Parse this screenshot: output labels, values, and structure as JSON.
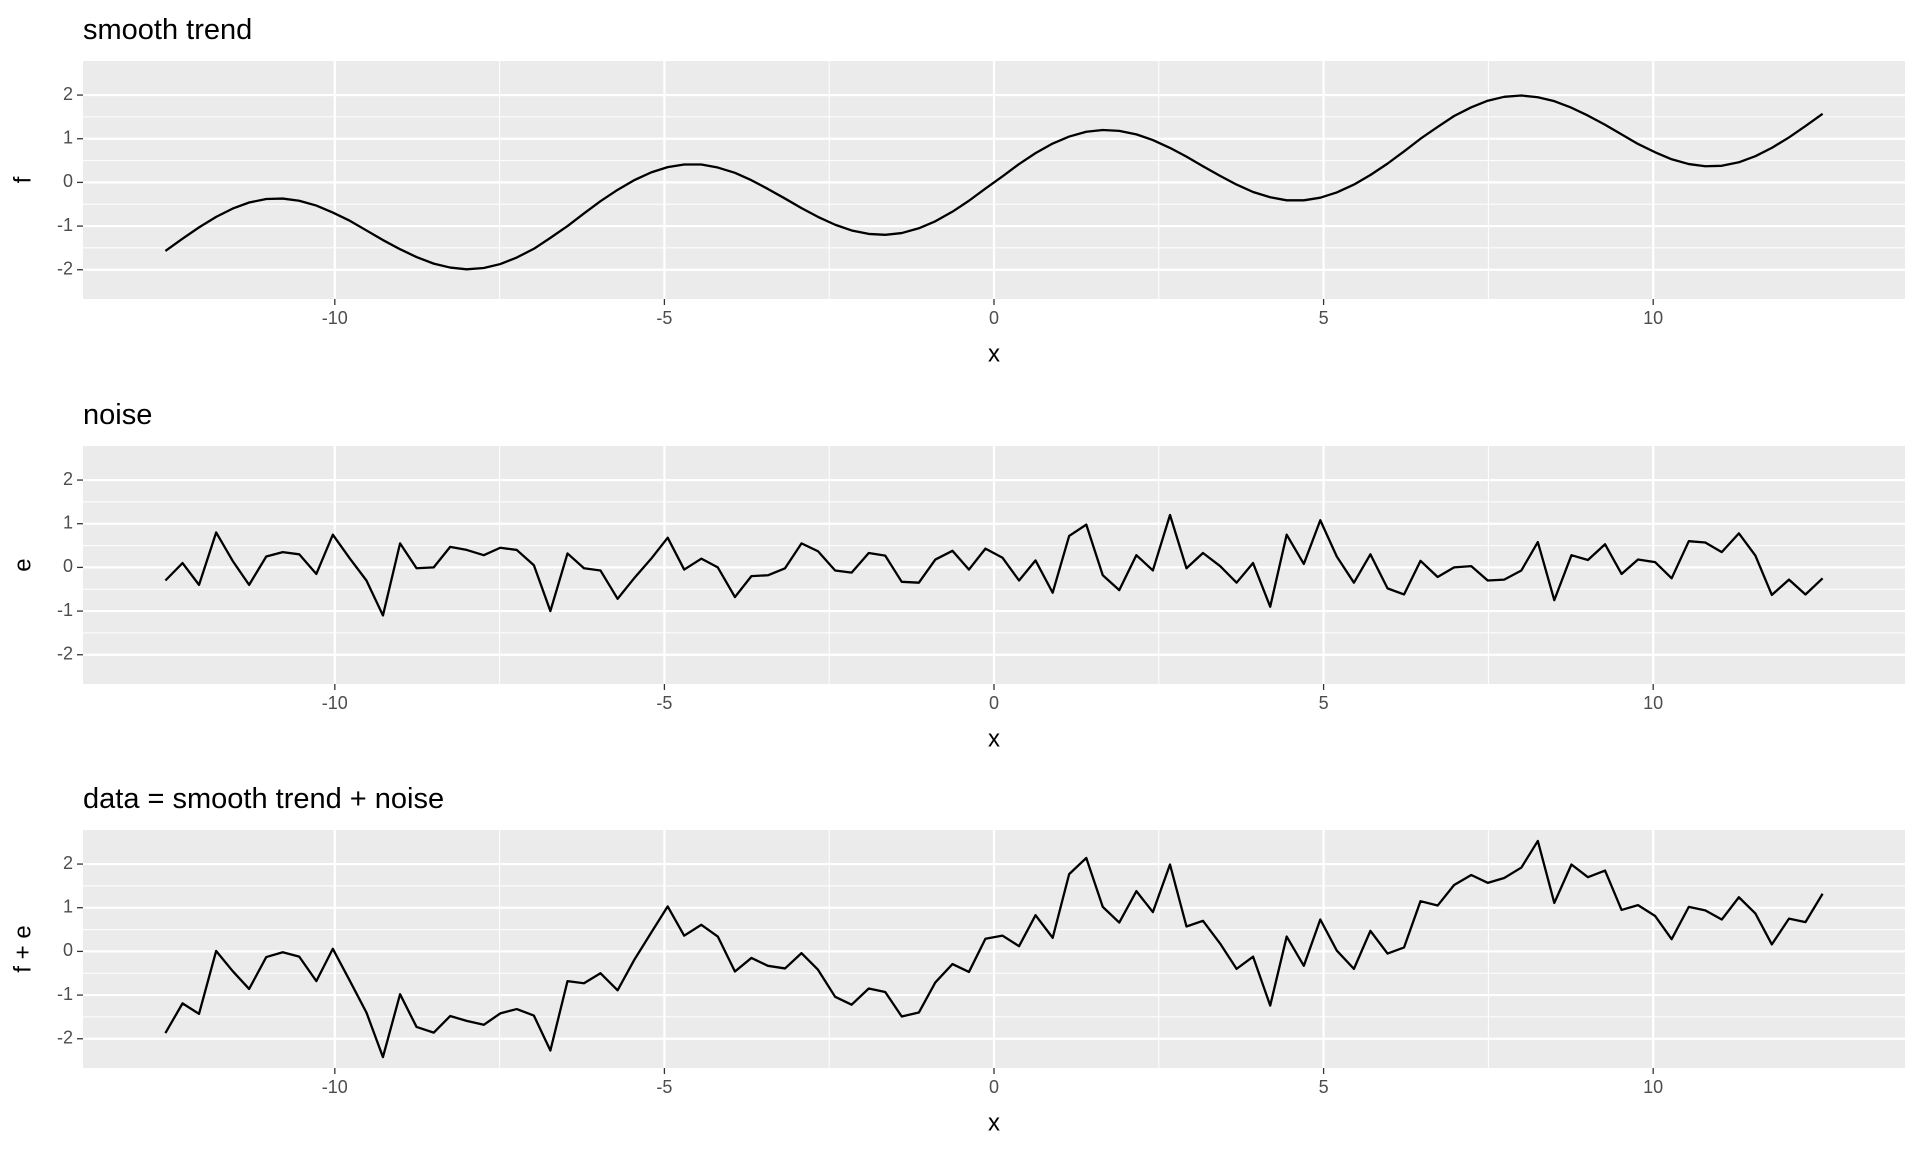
{
  "chart_data": [
    {
      "type": "line",
      "title": "smooth trend",
      "xlabel": "x",
      "ylabel": "f",
      "color": "#000000",
      "grid": true,
      "minor_grid": true,
      "xlim": [
        -13.82,
        13.82
      ],
      "ylim": [
        -2.67,
        2.78
      ],
      "xticks": [
        -10,
        -5,
        0,
        5,
        10
      ],
      "yticks": [
        -2,
        -1,
        0,
        1,
        2
      ],
      "x": [
        -12.57,
        -12.31,
        -12.06,
        -11.8,
        -11.55,
        -11.3,
        -11.04,
        -10.79,
        -10.54,
        -10.28,
        -10.03,
        -9.77,
        -9.52,
        -9.27,
        -9.01,
        -8.76,
        -8.5,
        -8.25,
        -8.0,
        -7.74,
        -7.49,
        -7.24,
        -6.98,
        -6.73,
        -6.47,
        -6.22,
        -5.97,
        -5.71,
        -5.46,
        -5.2,
        -4.95,
        -4.7,
        -4.44,
        -4.19,
        -3.93,
        -3.68,
        -3.43,
        -3.17,
        -2.92,
        -2.67,
        -2.41,
        -2.16,
        -1.9,
        -1.65,
        -1.4,
        -1.14,
        -0.89,
        -0.63,
        -0.38,
        -0.13,
        0.13,
        0.38,
        0.63,
        0.89,
        1.14,
        1.4,
        1.65,
        1.9,
        2.16,
        2.41,
        2.67,
        2.92,
        3.17,
        3.43,
        3.68,
        3.93,
        4.19,
        4.44,
        4.7,
        4.95,
        5.2,
        5.46,
        5.71,
        5.97,
        6.22,
        6.47,
        6.73,
        6.98,
        7.24,
        7.49,
        7.74,
        8.0,
        8.25,
        8.5,
        8.76,
        9.01,
        9.27,
        9.52,
        9.77,
        10.03,
        10.28,
        10.54,
        10.79,
        11.04,
        11.3,
        11.55,
        11.8,
        12.06,
        12.31,
        12.57
      ],
      "values": [
        -1.57,
        -1.29,
        -1.03,
        -0.79,
        -0.6,
        -0.46,
        -0.38,
        -0.37,
        -0.42,
        -0.53,
        -0.69,
        -0.88,
        -1.1,
        -1.32,
        -1.53,
        -1.71,
        -1.86,
        -1.95,
        -1.99,
        -1.96,
        -1.87,
        -1.72,
        -1.52,
        -1.27,
        -1.0,
        -0.71,
        -0.43,
        -0.17,
        0.05,
        0.23,
        0.35,
        0.41,
        0.41,
        0.34,
        0.22,
        0.05,
        -0.15,
        -0.37,
        -0.59,
        -0.79,
        -0.97,
        -1.1,
        -1.18,
        -1.2,
        -1.16,
        -1.05,
        -0.89,
        -0.67,
        -0.42,
        -0.14,
        0.14,
        0.42,
        0.67,
        0.89,
        1.05,
        1.16,
        1.2,
        1.18,
        1.1,
        0.97,
        0.79,
        0.59,
        0.37,
        0.15,
        -0.05,
        -0.22,
        -0.34,
        -0.41,
        -0.41,
        -0.35,
        -0.23,
        -0.05,
        0.17,
        0.43,
        0.71,
        1.0,
        1.27,
        1.52,
        1.72,
        1.87,
        1.96,
        1.99,
        1.95,
        1.86,
        1.71,
        1.53,
        1.32,
        1.1,
        0.88,
        0.69,
        0.53,
        0.42,
        0.37,
        0.38,
        0.46,
        0.6,
        0.79,
        1.03,
        1.29,
        1.57
      ]
    },
    {
      "type": "line",
      "title": "noise",
      "xlabel": "x",
      "ylabel": "e",
      "color": "#000000",
      "grid": true,
      "minor_grid": true,
      "xlim": [
        -13.82,
        13.82
      ],
      "ylim": [
        -2.67,
        2.78
      ],
      "xticks": [
        -10,
        -5,
        0,
        5,
        10
      ],
      "yticks": [
        -2,
        -1,
        0,
        1,
        2
      ],
      "x": [
        -12.57,
        -12.31,
        -12.06,
        -11.8,
        -11.55,
        -11.3,
        -11.04,
        -10.79,
        -10.54,
        -10.28,
        -10.03,
        -9.77,
        -9.52,
        -9.27,
        -9.01,
        -8.76,
        -8.5,
        -8.25,
        -8.0,
        -7.74,
        -7.49,
        -7.24,
        -6.98,
        -6.73,
        -6.47,
        -6.22,
        -5.97,
        -5.71,
        -5.46,
        -5.2,
        -4.95,
        -4.7,
        -4.44,
        -4.19,
        -3.93,
        -3.68,
        -3.43,
        -3.17,
        -2.92,
        -2.67,
        -2.41,
        -2.16,
        -1.9,
        -1.65,
        -1.4,
        -1.14,
        -0.89,
        -0.63,
        -0.38,
        -0.13,
        0.13,
        0.38,
        0.63,
        0.89,
        1.14,
        1.4,
        1.65,
        1.9,
        2.16,
        2.41,
        2.67,
        2.92,
        3.17,
        3.43,
        3.68,
        3.93,
        4.19,
        4.44,
        4.7,
        4.95,
        5.2,
        5.46,
        5.71,
        5.97,
        6.22,
        6.47,
        6.73,
        6.98,
        7.24,
        7.49,
        7.74,
        8.0,
        8.25,
        8.5,
        8.76,
        9.01,
        9.27,
        9.52,
        9.77,
        10.03,
        10.28,
        10.54,
        10.79,
        11.04,
        11.3,
        11.55,
        11.8,
        12.06,
        12.31,
        12.57
      ],
      "values": [
        -0.3,
        0.1,
        -0.4,
        0.8,
        0.15,
        -0.4,
        0.25,
        0.35,
        0.3,
        -0.15,
        0.75,
        0.2,
        -0.3,
        -1.1,
        0.55,
        -0.02,
        0.0,
        0.47,
        0.4,
        0.28,
        0.45,
        0.4,
        0.05,
        -1.0,
        0.32,
        -0.02,
        -0.07,
        -0.72,
        -0.25,
        0.2,
        0.68,
        -0.05,
        0.2,
        0.0,
        -0.68,
        -0.2,
        -0.18,
        -0.02,
        0.55,
        0.37,
        -0.07,
        -0.12,
        0.33,
        0.27,
        -0.33,
        -0.35,
        0.18,
        0.38,
        -0.05,
        0.43,
        0.22,
        -0.3,
        0.16,
        -0.58,
        0.72,
        0.98,
        -0.18,
        -0.52,
        0.28,
        -0.07,
        1.2,
        -0.02,
        0.33,
        0.03,
        -0.35,
        0.1,
        -0.9,
        0.75,
        0.08,
        1.08,
        0.25,
        -0.35,
        0.3,
        -0.48,
        -0.62,
        0.15,
        -0.22,
        0.0,
        0.03,
        -0.3,
        -0.28,
        -0.07,
        0.58,
        -0.75,
        0.28,
        0.17,
        0.53,
        -0.15,
        0.18,
        0.12,
        -0.25,
        0.6,
        0.57,
        0.35,
        0.78,
        0.27,
        -0.63,
        -0.28,
        -0.62,
        -0.25
      ]
    },
    {
      "type": "line",
      "title": "data = smooth trend + noise",
      "xlabel": "x",
      "ylabel": "f + e",
      "color": "#000000",
      "grid": true,
      "minor_grid": true,
      "xlim": [
        -13.82,
        13.82
      ],
      "ylim": [
        -2.67,
        2.78
      ],
      "xticks": [
        -10,
        -5,
        0,
        5,
        10
      ],
      "yticks": [
        -2,
        -1,
        0,
        1,
        2
      ],
      "x": [
        -12.57,
        -12.31,
        -12.06,
        -11.8,
        -11.55,
        -11.3,
        -11.04,
        -10.79,
        -10.54,
        -10.28,
        -10.03,
        -9.77,
        -9.52,
        -9.27,
        -9.01,
        -8.76,
        -8.5,
        -8.25,
        -8.0,
        -7.74,
        -7.49,
        -7.24,
        -6.98,
        -6.73,
        -6.47,
        -6.22,
        -5.97,
        -5.71,
        -5.46,
        -5.2,
        -4.95,
        -4.7,
        -4.44,
        -4.19,
        -3.93,
        -3.68,
        -3.43,
        -3.17,
        -2.92,
        -2.67,
        -2.41,
        -2.16,
        -1.9,
        -1.65,
        -1.4,
        -1.14,
        -0.89,
        -0.63,
        -0.38,
        -0.13,
        0.13,
        0.38,
        0.63,
        0.89,
        1.14,
        1.4,
        1.65,
        1.9,
        2.16,
        2.41,
        2.67,
        2.92,
        3.17,
        3.43,
        3.68,
        3.93,
        4.19,
        4.44,
        4.7,
        4.95,
        5.2,
        5.46,
        5.71,
        5.97,
        6.22,
        6.47,
        6.73,
        6.98,
        7.24,
        7.49,
        7.74,
        8.0,
        8.25,
        8.5,
        8.76,
        9.01,
        9.27,
        9.52,
        9.77,
        10.03,
        10.28,
        10.54,
        10.79,
        11.04,
        11.3,
        11.55,
        11.8,
        12.06,
        12.31,
        12.57
      ],
      "values": [
        -1.87,
        -1.19,
        -1.43,
        0.01,
        -0.45,
        -0.86,
        -0.13,
        -0.02,
        -0.12,
        -0.68,
        0.06,
        -0.68,
        -1.4,
        -2.42,
        -0.98,
        -1.73,
        -1.86,
        -1.48,
        -1.59,
        -1.68,
        -1.42,
        -1.32,
        -1.47,
        -2.27,
        -0.68,
        -0.73,
        -0.5,
        -0.89,
        -0.2,
        0.43,
        1.03,
        0.36,
        0.61,
        0.34,
        -0.46,
        -0.15,
        -0.33,
        -0.39,
        -0.04,
        -0.42,
        -1.04,
        -1.22,
        -0.85,
        -0.93,
        -1.49,
        -1.4,
        -0.71,
        -0.29,
        -0.47,
        0.29,
        0.36,
        0.12,
        0.83,
        0.31,
        1.77,
        2.14,
        1.02,
        0.66,
        1.38,
        0.9,
        1.99,
        0.57,
        0.7,
        0.18,
        -0.4,
        -0.12,
        -1.24,
        0.34,
        -0.33,
        0.73,
        0.02,
        -0.4,
        0.47,
        -0.05,
        0.09,
        1.15,
        1.05,
        1.52,
        1.75,
        1.57,
        1.68,
        1.92,
        2.53,
        1.11,
        1.99,
        1.7,
        1.85,
        0.95,
        1.06,
        0.81,
        0.28,
        1.02,
        0.94,
        0.73,
        1.24,
        0.87,
        0.16,
        0.75,
        0.67,
        1.32
      ]
    }
  ]
}
